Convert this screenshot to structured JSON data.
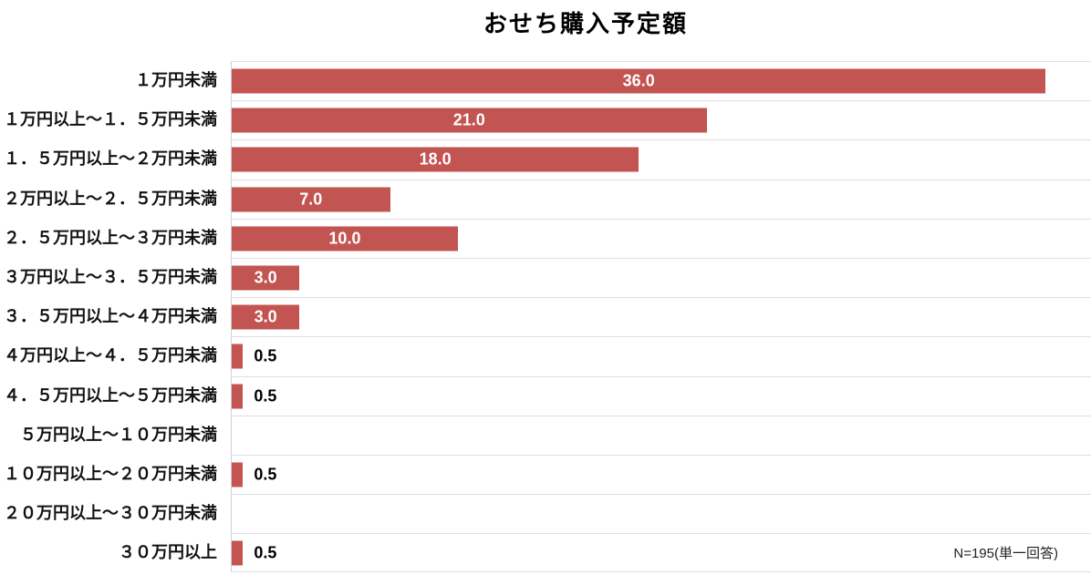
{
  "title": "おせち購入予定額",
  "note": "N=195(単一回答)",
  "colors": {
    "bar": "#c25452",
    "grid_line": "#dedee7",
    "axis_line": "#cfcfd9",
    "value_inside": "#ffffff",
    "value_outside": "#000000"
  },
  "chart_data": {
    "type": "bar",
    "orientation": "horizontal",
    "title": "おせち購入予定額",
    "categories": [
      "１万円未満",
      "１万円以上～１．５万円未満",
      "１．５万円以上～２万円未満",
      "２万円以上～２．５万円未満",
      "２．５万円以上～３万円未満",
      "３万円以上～３．５万円未満",
      "３．５万円以上～４万円未満",
      "４万円以上～４．５万円未満",
      "４．５万円以上～５万円未満",
      "５万円以上～１０万円未満",
      "１０万円以上～２０万円未満",
      "２０万円以上～３０万円未満",
      "３０万円以上"
    ],
    "values": [
      36.0,
      21.0,
      18.0,
      7.0,
      10.0,
      3.0,
      3.0,
      0.5,
      0.5,
      0,
      0.5,
      0,
      0.5
    ],
    "value_labels": [
      "36.0",
      "21.0",
      "18.0",
      "7.0",
      "10.0",
      "3.0",
      "3.0",
      "0.5",
      "0.5",
      "",
      "0.5",
      "",
      "0.5"
    ],
    "xlim": [
      0,
      38
    ],
    "inside_label_min_value": 3,
    "grid": "horizontal-row-separators",
    "legend": "none",
    "annotation": "N=195(単一回答)"
  }
}
